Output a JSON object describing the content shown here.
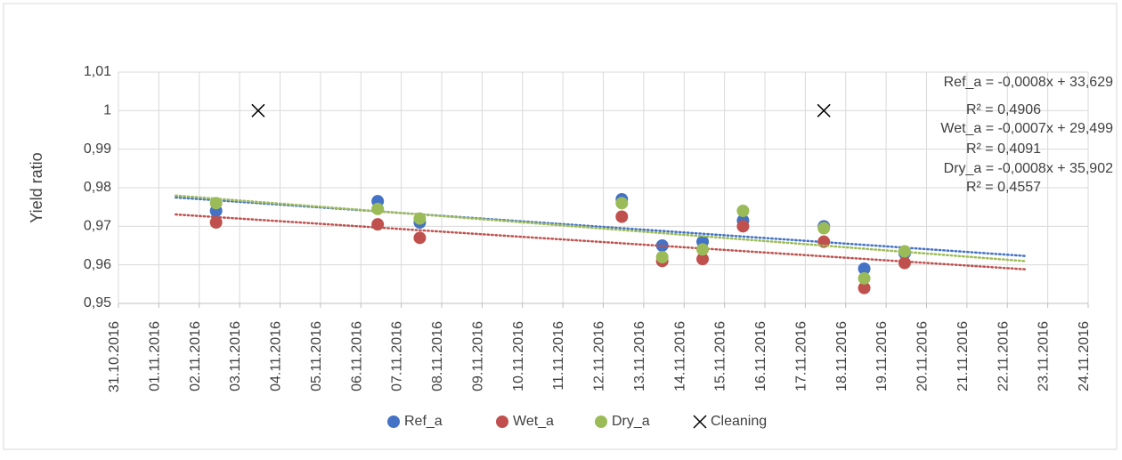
{
  "chart_data": {
    "type": "scatter",
    "y_label": "Yield ratio",
    "x": [
      "02.11.2016 10:00",
      "06.11.2016 10:00",
      "07.11.2016 11:00",
      "12.11.2016 11:00",
      "13.11.2016 11:00",
      "14.11.2016 11:00",
      "15.11.2016 11:00",
      "17.11.2016 11:00",
      "18.11.2016 11:00",
      "19.11.2016 11:00"
    ],
    "series": [
      {
        "name": "Ref_a",
        "color": "#4472c4",
        "values": [
          0.974,
          0.9765,
          0.971,
          0.977,
          0.965,
          0.966,
          0.9715,
          0.97,
          0.959,
          0.963
        ],
        "trendline": {
          "equation": "Ref_a = -0,0008x + 33,629",
          "r2": "R² = 0,4906"
        }
      },
      {
        "name": "Wet_a",
        "color": "#c0504d",
        "values": [
          0.971,
          0.9705,
          0.967,
          0.9725,
          0.961,
          0.9615,
          0.97,
          0.966,
          0.954,
          0.9605
        ],
        "trendline": {
          "equation": "Wet_a = -0,0007x + 29,499",
          "r2": "R² = 0,4091"
        }
      },
      {
        "name": "Dry_a",
        "color": "#9bbb59",
        "values": [
          0.976,
          0.9745,
          0.972,
          0.976,
          0.962,
          0.964,
          0.974,
          0.9695,
          0.9565,
          0.9635
        ],
        "trendline": {
          "equation": "Dry_a = -0,0008x + 35,902",
          "r2": "R² = 0,4557"
        }
      },
      {
        "name": "Cleaning",
        "color": "#000000",
        "marker": "x",
        "x": [
          "03.11.2016 11:00",
          "17.11.2016 11:00"
        ],
        "values": [
          1,
          1
        ]
      }
    ],
    "xlim": [
      "31.10.2016",
      "24.11.2016"
    ],
    "xticks": [
      "31.10.2016",
      "01.11.2016",
      "02.11.2016",
      "03.11.2016",
      "04.11.2016",
      "05.11.2016",
      "06.11.2016",
      "07.11.2016",
      "08.11.2016",
      "09.11.2016",
      "10.11.2016",
      "11.11.2016",
      "12.11.2016",
      "13.11.2016",
      "14.11.2016",
      "15.11.2016",
      "16.11.2016",
      "17.11.2016",
      "18.11.2016",
      "19.11.2016",
      "20.11.2016",
      "21.11.2016",
      "22.11.2016",
      "23.11.2016",
      "24.11.2016"
    ],
    "ylim": [
      0.95,
      1.01
    ],
    "yticks": [
      {
        "value": 0.95,
        "label": "0,95"
      },
      {
        "value": 0.96,
        "label": "0,96"
      },
      {
        "value": 0.97,
        "label": "0,97"
      },
      {
        "value": 0.98,
        "label": "0,98"
      },
      {
        "value": 0.99,
        "label": "0,99"
      },
      1,
      {
        "value": 1.01,
        "label": "1,01"
      }
    ],
    "grid": true,
    "legend": "bottom"
  }
}
